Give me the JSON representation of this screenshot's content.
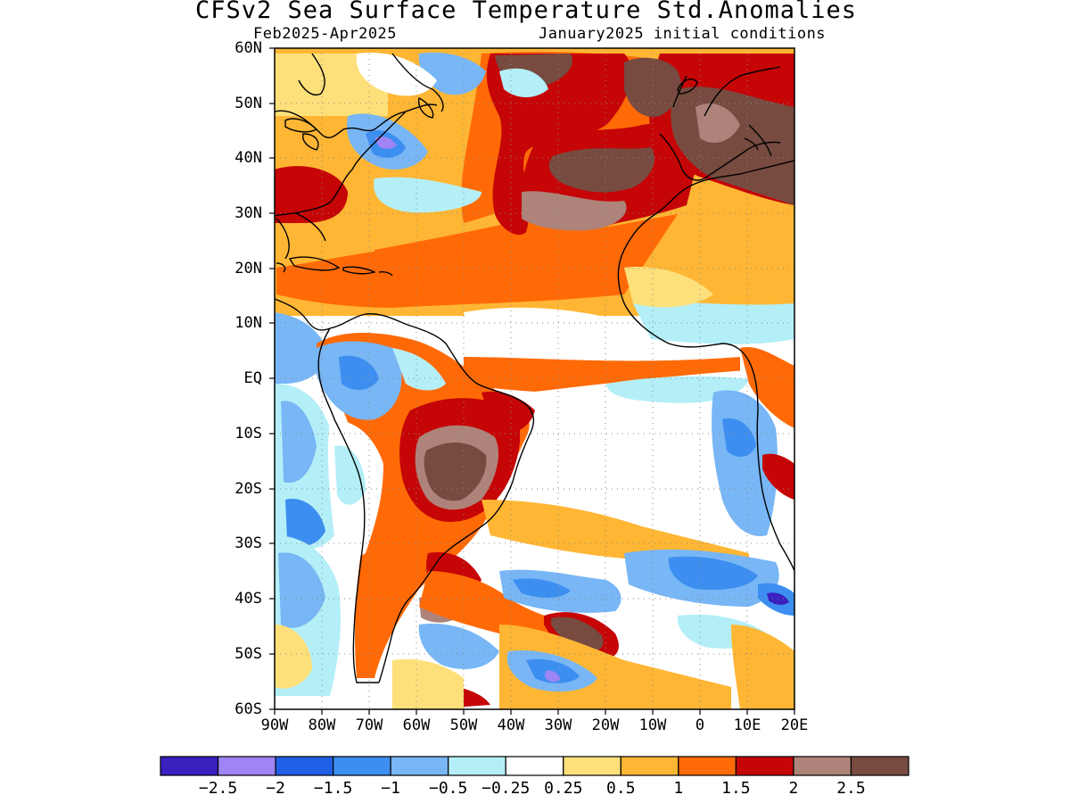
{
  "header": {
    "title": "CFSv2 Sea Surface Temperature Std.Anomalies",
    "period": "Feb2025-Apr2025",
    "init": "January2025 initial conditions"
  },
  "map": {
    "lat_labels": [
      "60N",
      "50N",
      "40N",
      "30N",
      "20N",
      "10N",
      "EQ",
      "10S",
      "20S",
      "30S",
      "40S",
      "50S",
      "60S"
    ],
    "lon_labels": [
      "90W",
      "80W",
      "70W",
      "60W",
      "50W",
      "40W",
      "30W",
      "20W",
      "10W",
      "0",
      "10E",
      "20E"
    ],
    "extent": {
      "lon_min": -90,
      "lon_max": 20,
      "lat_min": -60,
      "lat_max": 60
    },
    "grid": "dotted"
  },
  "colorbar": {
    "colors": [
      "#3b1fbf",
      "#9e84f4",
      "#1f5fe6",
      "#3c8ef0",
      "#78b6f5",
      "#b4eff8",
      "#ffffff",
      "#fee07b",
      "#feb634",
      "#ff6a07",
      "#c60506",
      "#ae837a",
      "#774b40"
    ],
    "labels": [
      "-2.5",
      "-2",
      "-1.5",
      "-1",
      "-0.5",
      "-0.25",
      "0.25",
      "0.5",
      "1",
      "1.5",
      "2",
      "2.5"
    ]
  },
  "chart_data": {
    "type": "heatmap",
    "title": "CFSv2 Sea Surface Temperature Std.Anomalies",
    "subtitle_left": "Feb2025-Apr2025",
    "subtitle_right": "January2025 initial conditions",
    "x_range": [
      -90,
      20
    ],
    "y_range": [
      -60,
      60
    ],
    "levels": [
      -2.5,
      -2,
      -1.5,
      -1,
      -0.5,
      -0.25,
      0.25,
      0.5,
      1,
      1.5,
      2,
      2.5
    ],
    "regions": [
      {
        "name": "Central North Atlantic",
        "anomaly": 2.5
      },
      {
        "name": "Caribbean / tropical North Atlantic",
        "anomaly": 1.5
      },
      {
        "name": "Western Mediterranean / Iberia",
        "anomaly": 2.5
      },
      {
        "name": "Northeast US coast",
        "anomaly": -2
      },
      {
        "name": "Equatorial Atlantic",
        "anomaly": 0
      },
      {
        "name": "Brazil interior",
        "anomaly": 2.5
      },
      {
        "name": "Southeast Pacific off South America",
        "anomaly": -1
      },
      {
        "name": "South Atlantic near 45S 25W",
        "anomaly": 2.5
      },
      {
        "name": "South Atlantic near 55S 30W",
        "anomaly": -1.5
      },
      {
        "name": "Off southern Africa 40S 15E",
        "anomaly": -2
      }
    ]
  }
}
